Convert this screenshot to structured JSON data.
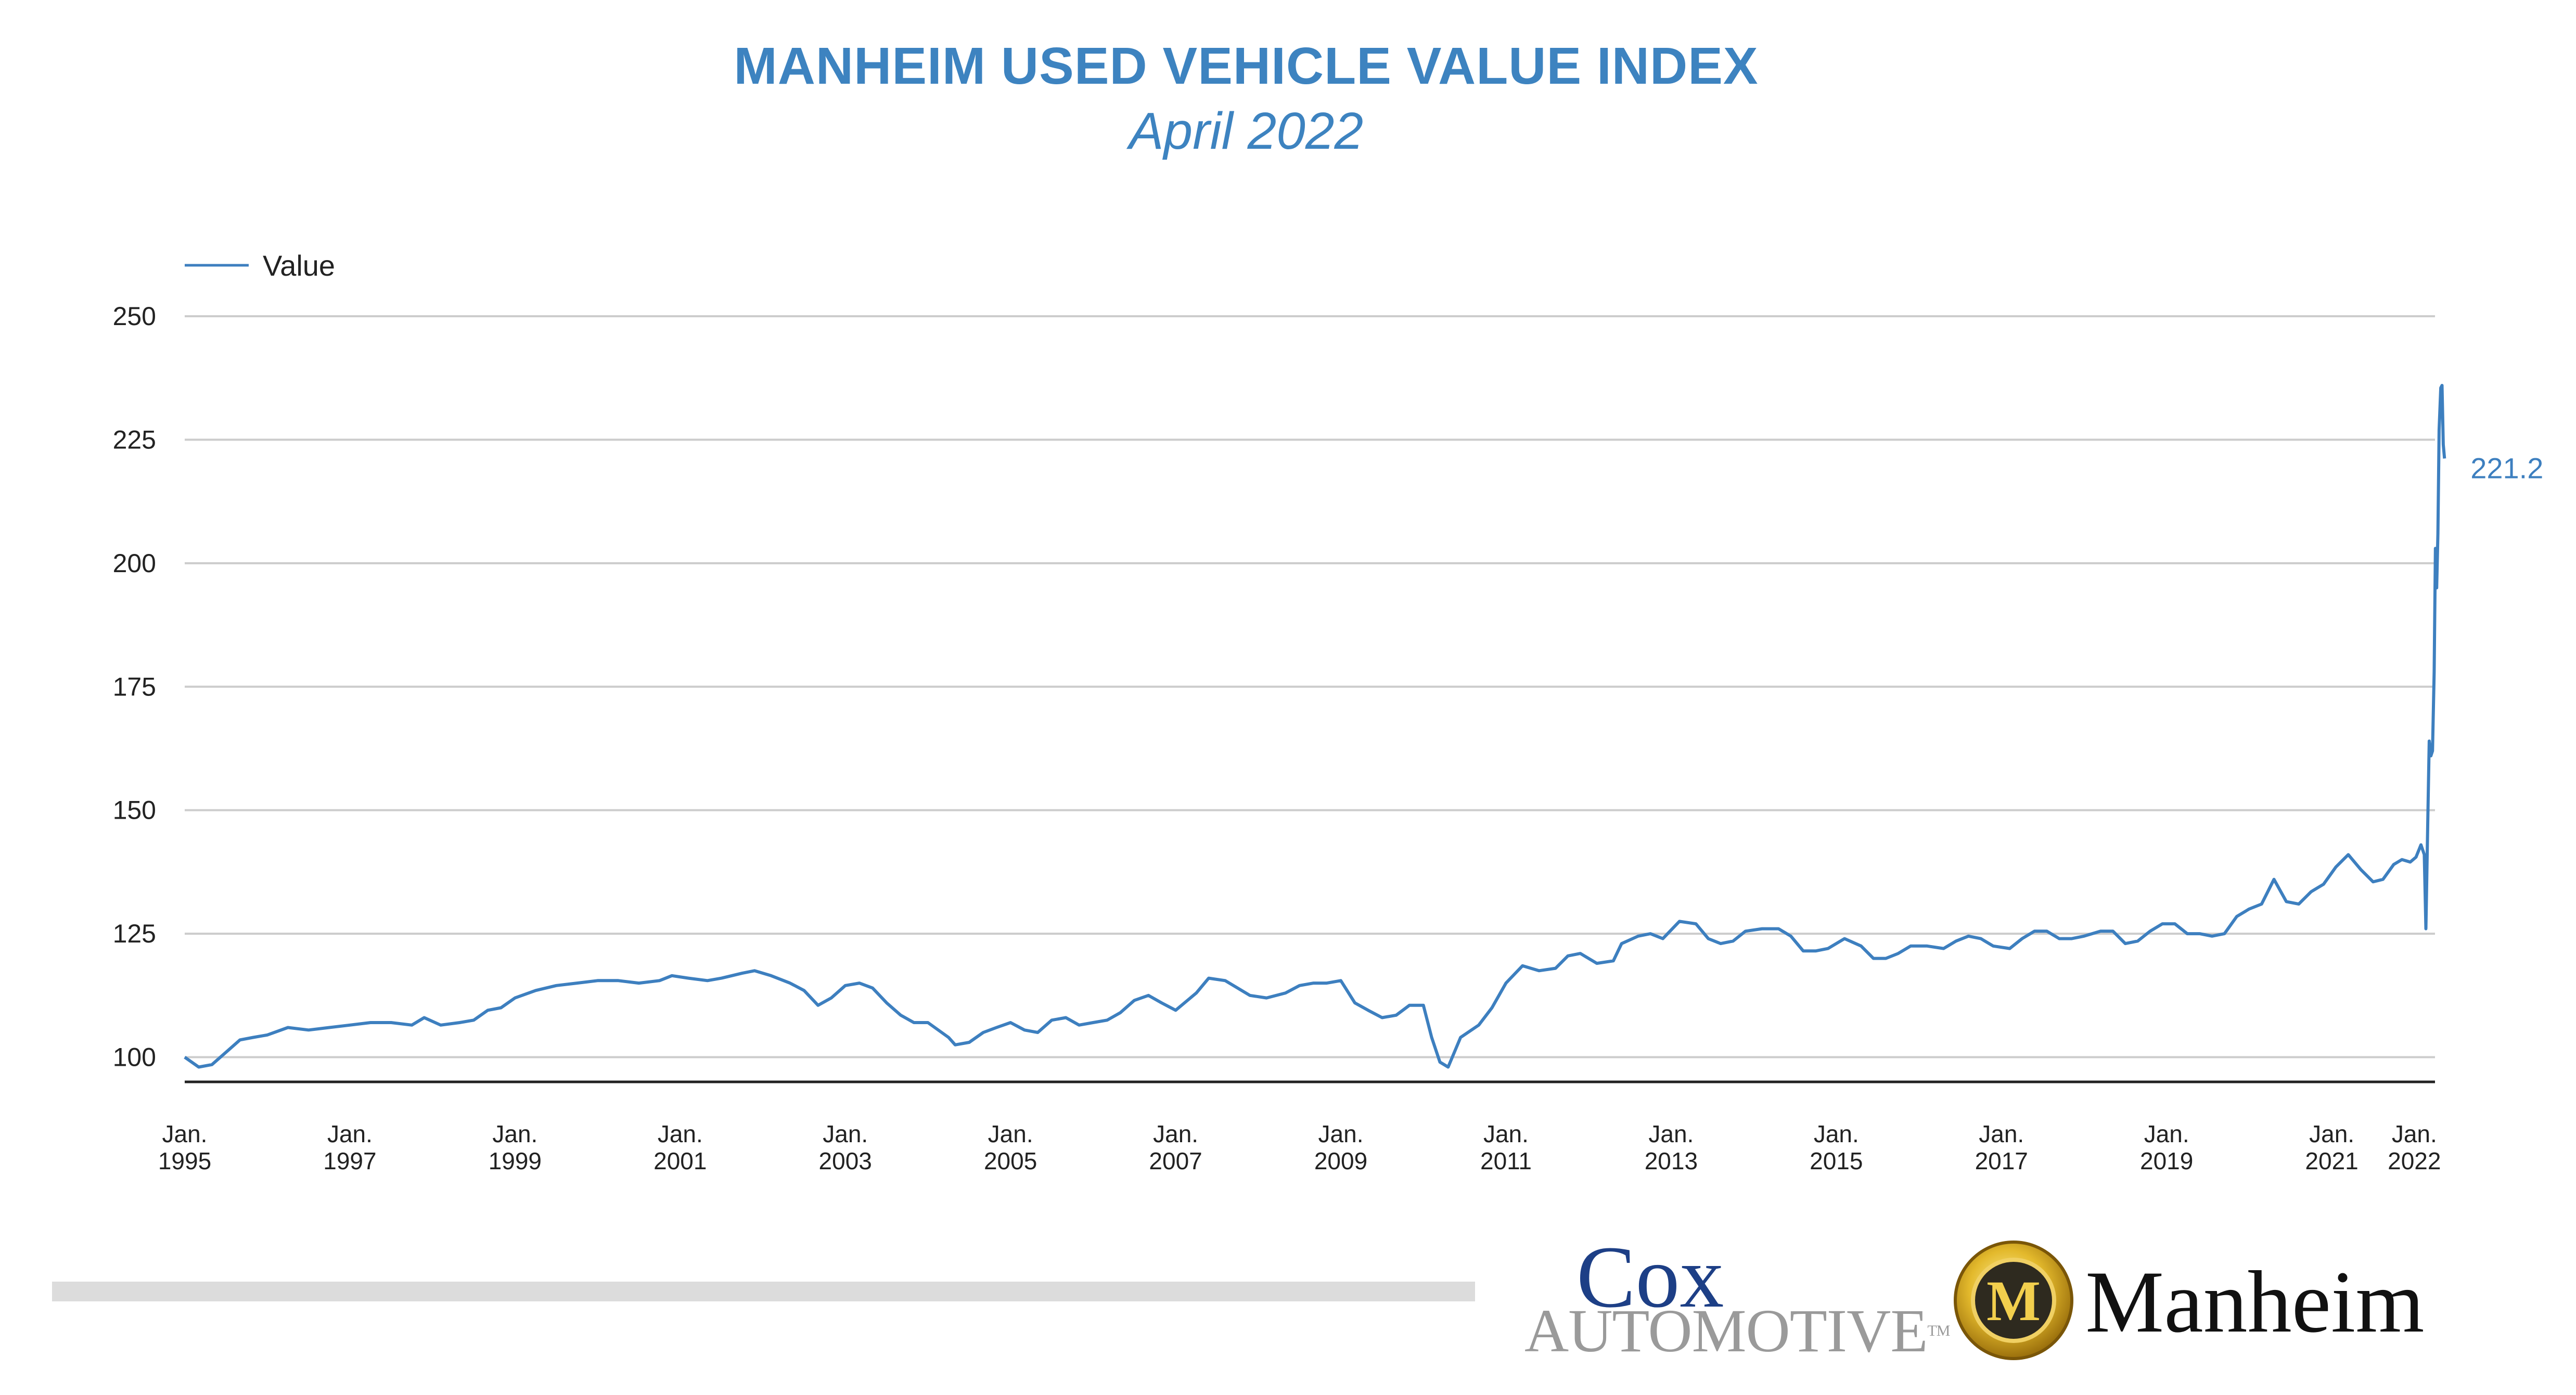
{
  "header": {
    "title": "MANHEIM USED VEHICLE VALUE INDEX",
    "subtitle": "April 2022"
  },
  "logos": {
    "cox_word": "Cox",
    "cox_sub": "AUTOMOTIVE",
    "cox_tm": "TM",
    "manheim_word": "Manheim",
    "manheim_emblem_letter": "M"
  },
  "colors": {
    "line": "#3d7fbf",
    "title": "#3d83c0",
    "grid": "#cccccc",
    "axis": "#222222",
    "footer_bar": "#dcdcdc"
  },
  "chart_data": {
    "type": "line",
    "legend": "top-left",
    "grid": true,
    "ylim": [
      95,
      250
    ],
    "yticks": [
      100,
      125,
      150,
      175,
      200,
      225,
      250
    ],
    "xlim": [
      1995.0,
      2022.25
    ],
    "xticks": [
      {
        "year": 1995,
        "label1": "Jan.",
        "label2": "1995"
      },
      {
        "year": 1997,
        "label1": "Jan.",
        "label2": "1997"
      },
      {
        "year": 1999,
        "label1": "Jan.",
        "label2": "1999"
      },
      {
        "year": 2001,
        "label1": "Jan.",
        "label2": "2001"
      },
      {
        "year": 2003,
        "label1": "Jan.",
        "label2": "2003"
      },
      {
        "year": 2005,
        "label1": "Jan.",
        "label2": "2005"
      },
      {
        "year": 2007,
        "label1": "Jan.",
        "label2": "2007"
      },
      {
        "year": 2009,
        "label1": "Jan.",
        "label2": "2009"
      },
      {
        "year": 2011,
        "label1": "Jan.",
        "label2": "2011"
      },
      {
        "year": 2013,
        "label1": "Jan.",
        "label2": "2013"
      },
      {
        "year": 2015,
        "label1": "Jan.",
        "label2": "2015"
      },
      {
        "year": 2017,
        "label1": "Jan.",
        "label2": "2017"
      },
      {
        "year": 2019,
        "label1": "Jan.",
        "label2": "2019"
      },
      {
        "year": 2021,
        "label1": "Jan.",
        "label2": "2021"
      },
      {
        "year": 2022,
        "label1": "Jan.",
        "label2": "2022"
      }
    ],
    "series": [
      {
        "name": "Value",
        "end_label": "221.2",
        "points": [
          [
            1995.0,
            100.0
          ],
          [
            1995.17,
            98.0
          ],
          [
            1995.33,
            98.5
          ],
          [
            1995.5,
            101.0
          ],
          [
            1995.67,
            103.5
          ],
          [
            1995.83,
            104.0
          ],
          [
            1996.0,
            104.5
          ],
          [
            1996.25,
            106.0
          ],
          [
            1996.5,
            105.5
          ],
          [
            1996.75,
            106.0
          ],
          [
            1997.0,
            106.5
          ],
          [
            1997.25,
            107.0
          ],
          [
            1997.5,
            107.0
          ],
          [
            1997.75,
            106.5
          ],
          [
            1997.9,
            108.0
          ],
          [
            1998.1,
            106.5
          ],
          [
            1998.33,
            107.0
          ],
          [
            1998.5,
            107.5
          ],
          [
            1998.67,
            109.5
          ],
          [
            1998.83,
            110.0
          ],
          [
            1999.0,
            112.0
          ],
          [
            1999.25,
            113.5
          ],
          [
            1999.5,
            114.5
          ],
          [
            1999.75,
            115.0
          ],
          [
            2000.0,
            115.5
          ],
          [
            2000.25,
            115.5
          ],
          [
            2000.5,
            115.0
          ],
          [
            2000.75,
            115.5
          ],
          [
            2000.9,
            116.5
          ],
          [
            2001.1,
            116.0
          ],
          [
            2001.33,
            115.5
          ],
          [
            2001.5,
            116.0
          ],
          [
            2001.75,
            117.0
          ],
          [
            2001.9,
            117.5
          ],
          [
            2002.1,
            116.5
          ],
          [
            2002.33,
            115.0
          ],
          [
            2002.5,
            113.5
          ],
          [
            2002.67,
            110.5
          ],
          [
            2002.83,
            112.0
          ],
          [
            2003.0,
            114.5
          ],
          [
            2003.17,
            115.0
          ],
          [
            2003.33,
            114.0
          ],
          [
            2003.5,
            111.0
          ],
          [
            2003.67,
            108.5
          ],
          [
            2003.83,
            107.0
          ],
          [
            2004.0,
            107.0
          ],
          [
            2004.25,
            104.0
          ],
          [
            2004.33,
            102.5
          ],
          [
            2004.5,
            103.0
          ],
          [
            2004.67,
            105.0
          ],
          [
            2004.83,
            106.0
          ],
          [
            2005.0,
            107.0
          ],
          [
            2005.17,
            105.5
          ],
          [
            2005.33,
            105.0
          ],
          [
            2005.5,
            107.5
          ],
          [
            2005.67,
            108.0
          ],
          [
            2005.83,
            106.5
          ],
          [
            2006.0,
            107.0
          ],
          [
            2006.17,
            107.5
          ],
          [
            2006.33,
            109.0
          ],
          [
            2006.5,
            111.5
          ],
          [
            2006.67,
            112.5
          ],
          [
            2006.83,
            111.0
          ],
          [
            2007.0,
            109.5
          ],
          [
            2007.25,
            113.0
          ],
          [
            2007.4,
            116.0
          ],
          [
            2007.6,
            115.5
          ],
          [
            2007.75,
            114.0
          ],
          [
            2007.9,
            112.5
          ],
          [
            2008.1,
            112.0
          ],
          [
            2008.33,
            113.0
          ],
          [
            2008.5,
            114.5
          ],
          [
            2008.67,
            115.0
          ],
          [
            2008.83,
            115.0
          ],
          [
            2009.0,
            115.5
          ],
          [
            2009.17,
            111.0
          ],
          [
            2009.33,
            109.5
          ],
          [
            2009.5,
            108.0
          ],
          [
            2009.67,
            108.5
          ],
          [
            2009.83,
            110.5
          ],
          [
            2010.0,
            110.5
          ],
          [
            2010.1,
            104.0
          ],
          [
            2010.2,
            99.0
          ],
          [
            2010.3,
            98.0
          ],
          [
            2010.45,
            104.0
          ],
          [
            2010.67,
            106.5
          ],
          [
            2010.83,
            110.0
          ],
          [
            2011.0,
            115.0
          ],
          [
            2011.2,
            118.5
          ],
          [
            2011.4,
            117.5
          ],
          [
            2011.6,
            118.0
          ],
          [
            2011.75,
            120.5
          ],
          [
            2011.9,
            121.0
          ],
          [
            2012.1,
            119.0
          ],
          [
            2012.3,
            119.5
          ],
          [
            2012.4,
            123.0
          ],
          [
            2012.6,
            124.5
          ],
          [
            2012.75,
            125.0
          ],
          [
            2012.9,
            124.0
          ],
          [
            2013.1,
            127.5
          ],
          [
            2013.3,
            127.0
          ],
          [
            2013.45,
            124.0
          ],
          [
            2013.6,
            123.0
          ],
          [
            2013.75,
            123.5
          ],
          [
            2013.9,
            125.5
          ],
          [
            2014.1,
            126.0
          ],
          [
            2014.3,
            126.0
          ],
          [
            2014.45,
            124.5
          ],
          [
            2014.6,
            121.5
          ],
          [
            2014.75,
            121.5
          ],
          [
            2014.9,
            122.0
          ],
          [
            2015.1,
            124.0
          ],
          [
            2015.3,
            122.5
          ],
          [
            2015.45,
            120.0
          ],
          [
            2015.6,
            120.0
          ],
          [
            2015.75,
            121.0
          ],
          [
            2015.9,
            122.5
          ],
          [
            2016.1,
            122.5
          ],
          [
            2016.3,
            122.0
          ],
          [
            2016.45,
            123.5
          ],
          [
            2016.6,
            124.5
          ],
          [
            2016.75,
            124.0
          ],
          [
            2016.9,
            122.5
          ],
          [
            2017.1,
            122.0
          ],
          [
            2017.25,
            124.0
          ],
          [
            2017.4,
            125.5
          ],
          [
            2017.55,
            125.5
          ],
          [
            2017.7,
            124.0
          ],
          [
            2017.85,
            124.0
          ],
          [
            2018.0,
            124.5
          ],
          [
            2018.2,
            125.5
          ],
          [
            2018.35,
            125.5
          ],
          [
            2018.5,
            123.0
          ],
          [
            2018.65,
            123.5
          ],
          [
            2018.8,
            125.5
          ],
          [
            2018.95,
            127.0
          ],
          [
            2019.1,
            127.0
          ],
          [
            2019.25,
            125.0
          ],
          [
            2019.4,
            125.0
          ],
          [
            2019.55,
            124.5
          ],
          [
            2019.7,
            125.0
          ],
          [
            2019.85,
            128.5
          ],
          [
            2020.0,
            130.0
          ],
          [
            2020.15,
            131.0
          ],
          [
            2020.3,
            136.0
          ],
          [
            2020.45,
            131.5
          ],
          [
            2020.6,
            131.0
          ],
          [
            2020.75,
            133.5
          ],
          [
            2020.9,
            135.0
          ],
          [
            2021.05,
            138.5
          ],
          [
            2021.2,
            141.0
          ],
          [
            2021.35,
            138.0
          ],
          [
            2021.5,
            135.5
          ],
          [
            2021.62,
            136.0
          ],
          [
            2021.75,
            139.0
          ],
          [
            2021.85,
            140.0
          ],
          [
            2021.95,
            139.5
          ],
          [
            2022.02,
            140.5
          ],
          [
            2022.08,
            143.0
          ],
          [
            2022.12,
            141.0
          ],
          [
            2022.14,
            126.0
          ],
          [
            2022.165,
            150.0
          ],
          [
            2022.18,
            164.0
          ],
          [
            2022.2,
            161.0
          ],
          [
            2022.22,
            162.0
          ],
          [
            2022.24,
            178.0
          ],
          [
            2022.255,
            203.0
          ],
          [
            2022.27,
            195.0
          ],
          [
            2022.285,
            206.0
          ],
          [
            2022.3,
            227.0
          ],
          [
            2022.32,
            235.5
          ],
          [
            2022.335,
            236.0
          ],
          [
            2022.35,
            224.0
          ],
          [
            2022.365,
            221.2
          ]
        ]
      }
    ]
  }
}
